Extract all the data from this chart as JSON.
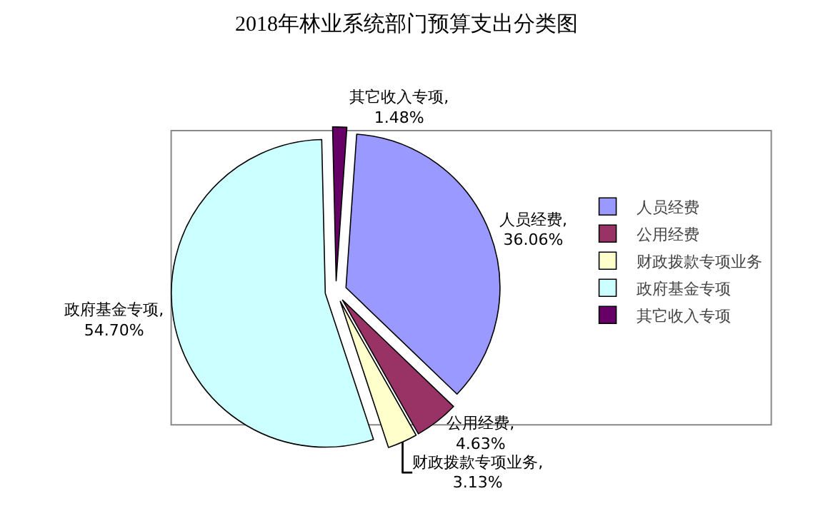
{
  "chart_data": {
    "type": "pie",
    "title": "2018年林业系统部门预算支出分类图",
    "categories": [
      "人员经费",
      "公用经费",
      "财政拨款专项业务",
      "政府基金专项",
      "其它收入专项"
    ],
    "values": [
      36.06,
      4.63,
      3.13,
      54.7,
      1.48
    ],
    "colors": [
      "#9999ff",
      "#993366",
      "#ffffcc",
      "#ccffff",
      "#660066"
    ],
    "value_labels": [
      "人员经费, 36.06%",
      "公用经费, 4.63%",
      "财政拨款专项业务, 3.13%",
      "政府基金专项, 54.70%",
      "其它收入专项, 1.48%"
    ],
    "legend": "right"
  }
}
